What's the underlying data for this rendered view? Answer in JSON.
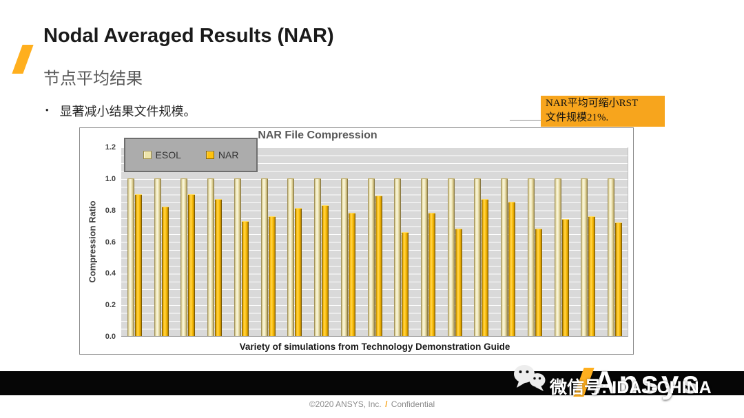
{
  "slide": {
    "title": "Nodal Averaged Results (NAR)",
    "subtitle": "节点平均结果",
    "bullet_glyph": "•",
    "bullet": "显著减小结果文件规模。",
    "accent_color": "#FFAF1E"
  },
  "callout": {
    "line1": "NAR平均可缩小RST",
    "line2": "文件规模21%.",
    "bg_color": "#F7A51D"
  },
  "chart_data": {
    "type": "bar",
    "title": "NAR File Compression",
    "xlabel": "Variety of simulations from Technology Demonstration Guide",
    "ylabel": "Compression Ratio",
    "ylim": [
      0,
      1.2
    ],
    "ytick_step": 0.2,
    "grid": true,
    "legend_position": "top-left",
    "n_groups": 19,
    "categories_labeled": false,
    "series": [
      {
        "name": "ESOL",
        "swatch_color": "#EDE4A9",
        "values": [
          1.0,
          1.0,
          1.0,
          1.0,
          1.0,
          1.0,
          1.0,
          1.0,
          1.0,
          1.0,
          1.0,
          1.0,
          1.0,
          1.0,
          1.0,
          1.0,
          1.0,
          1.0,
          1.0
        ]
      },
      {
        "name": "NAR",
        "swatch_color": "#FFC20E",
        "values": [
          0.9,
          0.82,
          0.9,
          0.87,
          0.73,
          0.76,
          0.81,
          0.83,
          0.78,
          0.89,
          0.66,
          0.78,
          0.68,
          0.87,
          0.85,
          0.68,
          0.74,
          0.76,
          0.72
        ]
      }
    ]
  },
  "bottom_bar": {
    "icon": "wechat-icon",
    "wechat_label": "微信号: IDAJ-CHINA",
    "logo_text": "Ansys"
  },
  "footer": {
    "copyright": "©2020 ANSYS, Inc.",
    "slash": "/",
    "confidential": "Confidential"
  }
}
